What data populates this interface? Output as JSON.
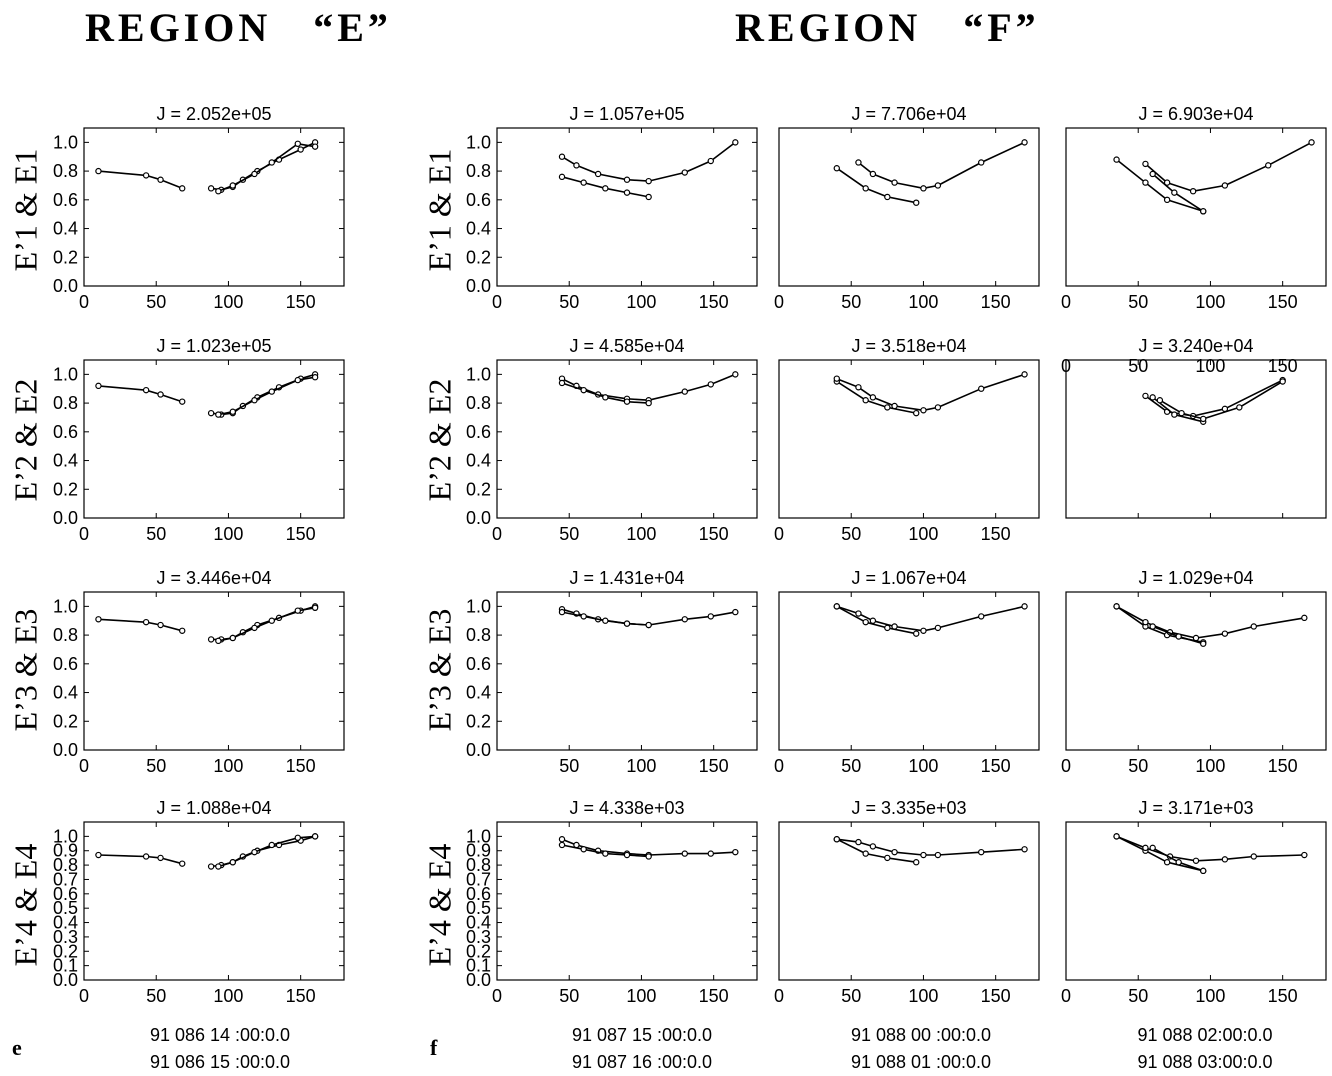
{
  "regions": {
    "e": {
      "title": "REGION   “E”",
      "letter": "e",
      "times": [
        "91 086 14 :00:0.0",
        "91 086 15 :00:0.0"
      ]
    },
    "f": {
      "title": "REGION   “F”",
      "letter": "f"
    }
  },
  "column_times": [
    [
      "91 087 15 :00:0.0",
      "91 087 16 :00:0.0"
    ],
    [
      "91 088 00 :00:0.0",
      "91 088 01 :00:0.0"
    ],
    [
      "91 088 02:00:0.0",
      "91 088 03:00:0.0"
    ]
  ],
  "row_ylabels": [
    "E’1 & E1",
    "E’2 & E2",
    "E’3 & E3",
    "E’4 & E4"
  ],
  "chart_data": [
    {
      "type": "line",
      "panel": "E-1",
      "title": "J = 2.052e+05",
      "ylabel": "E’1 & E1",
      "xlim": [
        0,
        180
      ],
      "ylim": [
        0,
        1.1
      ],
      "xticks": [
        0,
        50,
        100,
        150
      ],
      "yticks": [
        0.0,
        0.2,
        0.4,
        0.6,
        0.8,
        1.0
      ],
      "series": [
        {
          "x": [
            10,
            43,
            53,
            68
          ],
          "y": [
            0.8,
            0.77,
            0.74,
            0.68
          ]
        },
        {
          "x": [
            88,
            95,
            103,
            110,
            120,
            135,
            150,
            160
          ],
          "y": [
            0.68,
            0.67,
            0.69,
            0.74,
            0.8,
            0.88,
            0.95,
            1.0
          ]
        },
        {
          "x": [
            93,
            103,
            118,
            130,
            148,
            160
          ],
          "y": [
            0.66,
            0.7,
            0.78,
            0.86,
            0.99,
            0.97
          ]
        }
      ]
    },
    {
      "type": "line",
      "panel": "F1-1",
      "title": "J = 1.057e+05",
      "ylabel": "E’1 & E1",
      "xlim": [
        0,
        180
      ],
      "ylim": [
        0,
        1.1
      ],
      "xticks": [
        0,
        50,
        100,
        150
      ],
      "yticks": [
        0.0,
        0.2,
        0.4,
        0.6,
        0.8,
        1.0
      ],
      "series": [
        {
          "x": [
            45,
            55,
            70,
            90,
            105,
            130,
            148,
            165
          ],
          "y": [
            0.9,
            0.84,
            0.78,
            0.74,
            0.73,
            0.79,
            0.87,
            1.0
          ]
        },
        {
          "x": [
            45,
            60,
            75,
            90,
            105
          ],
          "y": [
            0.76,
            0.72,
            0.68,
            0.65,
            0.62
          ]
        }
      ]
    },
    {
      "type": "line",
      "panel": "F2-1",
      "title": "J = 7.706e+04",
      "xlim": [
        0,
        180
      ],
      "ylim": [
        0,
        1.1
      ],
      "xticks": [
        0,
        50,
        100,
        150
      ],
      "series": [
        {
          "x": [
            40,
            60,
            75,
            95
          ],
          "y": [
            0.82,
            0.68,
            0.62,
            0.58
          ]
        },
        {
          "x": [
            55,
            65,
            80,
            100,
            110,
            140,
            170
          ],
          "y": [
            0.86,
            0.78,
            0.72,
            0.68,
            0.7,
            0.86,
            1.0
          ]
        }
      ]
    },
    {
      "type": "line",
      "panel": "F3-1",
      "title": "J = 6.903e+04",
      "xlim": [
        0,
        180
      ],
      "ylim": [
        0,
        1.1
      ],
      "xticks": [
        0,
        50,
        100,
        150
      ],
      "series": [
        {
          "x": [
            35,
            55,
            70,
            95
          ],
          "y": [
            0.88,
            0.72,
            0.6,
            0.52
          ]
        },
        {
          "x": [
            55,
            70,
            88,
            110,
            140,
            170
          ],
          "y": [
            0.85,
            0.72,
            0.66,
            0.7,
            0.84,
            1.0
          ]
        },
        {
          "x": [
            60,
            75,
            95
          ],
          "y": [
            0.78,
            0.65,
            0.52
          ]
        }
      ]
    },
    {
      "type": "line",
      "panel": "E-2",
      "title": "J = 1.023e+05",
      "ylabel": "E’2 & E2",
      "xlim": [
        0,
        180
      ],
      "ylim": [
        0,
        1.1
      ],
      "xticks": [
        0,
        50,
        100,
        150
      ],
      "yticks": [
        0.0,
        0.2,
        0.4,
        0.6,
        0.8,
        1.0
      ],
      "series": [
        {
          "x": [
            10,
            43,
            53,
            68
          ],
          "y": [
            0.92,
            0.89,
            0.86,
            0.81
          ]
        },
        {
          "x": [
            88,
            95,
            103,
            110,
            120,
            135,
            150,
            160
          ],
          "y": [
            0.73,
            0.72,
            0.73,
            0.78,
            0.84,
            0.91,
            0.97,
            1.0
          ]
        },
        {
          "x": [
            93,
            103,
            118,
            130,
            148,
            160
          ],
          "y": [
            0.72,
            0.74,
            0.82,
            0.88,
            0.96,
            0.98
          ]
        }
      ]
    },
    {
      "type": "line",
      "panel": "F1-2",
      "title": "J = 4.585e+04",
      "ylabel": "E’2 & E2",
      "xlim": [
        0,
        180
      ],
      "ylim": [
        0,
        1.1
      ],
      "xticks": [
        0,
        50,
        100,
        150
      ],
      "yticks": [
        0.0,
        0.2,
        0.4,
        0.6,
        0.8,
        1.0
      ],
      "series": [
        {
          "x": [
            45,
            55,
            70,
            90,
            105,
            130,
            148,
            165
          ],
          "y": [
            0.97,
            0.92,
            0.86,
            0.83,
            0.82,
            0.88,
            0.93,
            1.0
          ]
        },
        {
          "x": [
            45,
            60,
            75,
            90,
            105
          ],
          "y": [
            0.94,
            0.89,
            0.84,
            0.81,
            0.8
          ]
        }
      ]
    },
    {
      "type": "line",
      "panel": "F2-2",
      "title": "J = 3.518e+04",
      "xlim": [
        0,
        180
      ],
      "ylim": [
        0,
        1.1
      ],
      "xticks": [
        0,
        50,
        100,
        150
      ],
      "series": [
        {
          "x": [
            40,
            60,
            75,
            95
          ],
          "y": [
            0.95,
            0.82,
            0.77,
            0.73
          ]
        },
        {
          "x": [
            40,
            55,
            65,
            80,
            100,
            110,
            140,
            170
          ],
          "y": [
            0.97,
            0.91,
            0.84,
            0.78,
            0.75,
            0.77,
            0.9,
            1.0
          ]
        }
      ]
    },
    {
      "type": "line",
      "panel": "F3-2",
      "title": "J = 3.240e+04",
      "xlim": [
        0,
        180
      ],
      "ylim": [
        0,
        1.1
      ],
      "xticks": [
        0,
        50,
        100,
        150
      ],
      "xticks_top": true,
      "series": [
        {
          "x": [
            55,
            70,
            88,
            110,
            150
          ],
          "y": [
            0.85,
            0.74,
            0.71,
            0.76,
            0.96
          ]
        },
        {
          "x": [
            60,
            75,
            95
          ],
          "y": [
            0.84,
            0.72,
            0.67
          ]
        },
        {
          "x": [
            65,
            80,
            95,
            120,
            150
          ],
          "y": [
            0.82,
            0.73,
            0.69,
            0.77,
            0.95
          ]
        }
      ]
    },
    {
      "type": "line",
      "panel": "E-3",
      "title": "J = 3.446e+04",
      "ylabel": "E’3 & E3",
      "xlim": [
        0,
        180
      ],
      "ylim": [
        0,
        1.1
      ],
      "xticks": [
        0,
        50,
        100,
        150
      ],
      "yticks": [
        0.0,
        0.2,
        0.4,
        0.6,
        0.8,
        1.0
      ],
      "series": [
        {
          "x": [
            10,
            43,
            53,
            68
          ],
          "y": [
            0.91,
            0.89,
            0.87,
            0.83
          ]
        },
        {
          "x": [
            88,
            95,
            103,
            110,
            120,
            135,
            150,
            160
          ],
          "y": [
            0.77,
            0.77,
            0.78,
            0.82,
            0.87,
            0.92,
            0.97,
            1.0
          ]
        },
        {
          "x": [
            93,
            103,
            118,
            130,
            148,
            160
          ],
          "y": [
            0.76,
            0.78,
            0.85,
            0.9,
            0.97,
            0.99
          ]
        }
      ]
    },
    {
      "type": "line",
      "panel": "F1-3",
      "title": "J = 1.431e+04",
      "ylabel": "E’3 & E3",
      "xlim": [
        0,
        180
      ],
      "ylim": [
        0,
        1.1
      ],
      "xticks": [
        50,
        100,
        150
      ],
      "yticks": [
        0.0,
        0.2,
        0.4,
        0.6,
        0.8,
        1.0
      ],
      "series": [
        {
          "x": [
            45,
            55,
            70,
            90,
            105,
            130,
            148,
            165
          ],
          "y": [
            0.98,
            0.95,
            0.91,
            0.88,
            0.87,
            0.91,
            0.93,
            0.96
          ]
        },
        {
          "x": [
            45,
            60,
            75,
            90,
            105
          ],
          "y": [
            0.96,
            0.93,
            0.9,
            0.88,
            0.87
          ]
        }
      ]
    },
    {
      "type": "line",
      "panel": "F2-3",
      "title": "J = 1.067e+04",
      "xlim": [
        0,
        180
      ],
      "ylim": [
        0,
        1.1
      ],
      "xticks": [
        0,
        50,
        100,
        150
      ],
      "series": [
        {
          "x": [
            40,
            60,
            75,
            95
          ],
          "y": [
            1.0,
            0.89,
            0.85,
            0.81
          ]
        },
        {
          "x": [
            40,
            55,
            65,
            80,
            100,
            110,
            140,
            170
          ],
          "y": [
            1.0,
            0.95,
            0.9,
            0.86,
            0.83,
            0.85,
            0.93,
            1.0
          ]
        }
      ]
    },
    {
      "type": "line",
      "panel": "F3-3",
      "title": "J = 1.029e+04",
      "xlim": [
        0,
        180
      ],
      "ylim": [
        0,
        1.1
      ],
      "xticks": [
        0,
        50,
        100,
        150
      ],
      "series": [
        {
          "x": [
            35,
            55,
            70,
            95
          ],
          "y": [
            1.0,
            0.86,
            0.8,
            0.75
          ]
        },
        {
          "x": [
            35,
            55,
            72,
            90,
            110,
            130,
            165
          ],
          "y": [
            1.0,
            0.89,
            0.82,
            0.78,
            0.81,
            0.86,
            0.92
          ]
        },
        {
          "x": [
            60,
            78,
            95
          ],
          "y": [
            0.86,
            0.79,
            0.74
          ]
        }
      ]
    },
    {
      "type": "line",
      "panel": "E-4",
      "title": "J = 1.088e+04",
      "ylabel": "E’4 & E4",
      "xlim": [
        0,
        180
      ],
      "ylim": [
        0,
        1.1
      ],
      "xticks": [
        0,
        50,
        100,
        150
      ],
      "yticks": [
        0.0,
        0.1,
        0.2,
        0.3,
        0.4,
        0.5,
        0.6,
        0.7,
        0.8,
        0.9,
        1.0
      ],
      "series": [
        {
          "x": [
            10,
            43,
            53,
            68
          ],
          "y": [
            0.87,
            0.86,
            0.85,
            0.81
          ]
        },
        {
          "x": [
            88,
            95,
            103,
            110,
            120,
            135,
            150,
            160
          ],
          "y": [
            0.79,
            0.8,
            0.82,
            0.86,
            0.9,
            0.94,
            0.97,
            1.0
          ]
        },
        {
          "x": [
            93,
            103,
            118,
            130,
            148,
            160
          ],
          "y": [
            0.79,
            0.82,
            0.89,
            0.94,
            0.99,
            1.0
          ]
        }
      ]
    },
    {
      "type": "line",
      "panel": "F1-4",
      "title": "J = 4.338e+03",
      "ylabel": "E’4 & E4",
      "xlim": [
        0,
        180
      ],
      "ylim": [
        0,
        1.1
      ],
      "xticks": [
        0,
        50,
        100,
        150
      ],
      "yticks": [
        0.0,
        0.1,
        0.2,
        0.3,
        0.4,
        0.5,
        0.6,
        0.7,
        0.8,
        0.9,
        1.0
      ],
      "series": [
        {
          "x": [
            45,
            55,
            70,
            90,
            105,
            130,
            148,
            165
          ],
          "y": [
            0.98,
            0.94,
            0.9,
            0.88,
            0.87,
            0.88,
            0.88,
            0.89
          ]
        },
        {
          "x": [
            45,
            60,
            75,
            90,
            105
          ],
          "y": [
            0.94,
            0.91,
            0.88,
            0.87,
            0.86
          ]
        }
      ]
    },
    {
      "type": "line",
      "panel": "F2-4",
      "title": "J = 3.335e+03",
      "xlim": [
        0,
        180
      ],
      "ylim": [
        0,
        1.1
      ],
      "xticks": [
        0,
        50,
        100,
        150
      ],
      "series": [
        {
          "x": [
            40,
            60,
            75,
            95
          ],
          "y": [
            0.98,
            0.88,
            0.85,
            0.82
          ]
        },
        {
          "x": [
            40,
            55,
            65,
            80,
            100,
            110,
            140,
            170
          ],
          "y": [
            0.98,
            0.96,
            0.93,
            0.89,
            0.87,
            0.87,
            0.89,
            0.91
          ]
        }
      ]
    },
    {
      "type": "line",
      "panel": "F3-4",
      "title": "J = 3.171e+03",
      "xlim": [
        0,
        180
      ],
      "ylim": [
        0,
        1.1
      ],
      "xticks": [
        0,
        50,
        100,
        150
      ],
      "series": [
        {
          "x": [
            35,
            55,
            70,
            95
          ],
          "y": [
            1.0,
            0.9,
            0.82,
            0.76
          ]
        },
        {
          "x": [
            35,
            55,
            72,
            90,
            110,
            130,
            165
          ],
          "y": [
            1.0,
            0.92,
            0.86,
            0.83,
            0.84,
            0.86,
            0.87
          ]
        },
        {
          "x": [
            60,
            78,
            95
          ],
          "y": [
            0.92,
            0.82,
            0.76
          ]
        }
      ]
    }
  ]
}
